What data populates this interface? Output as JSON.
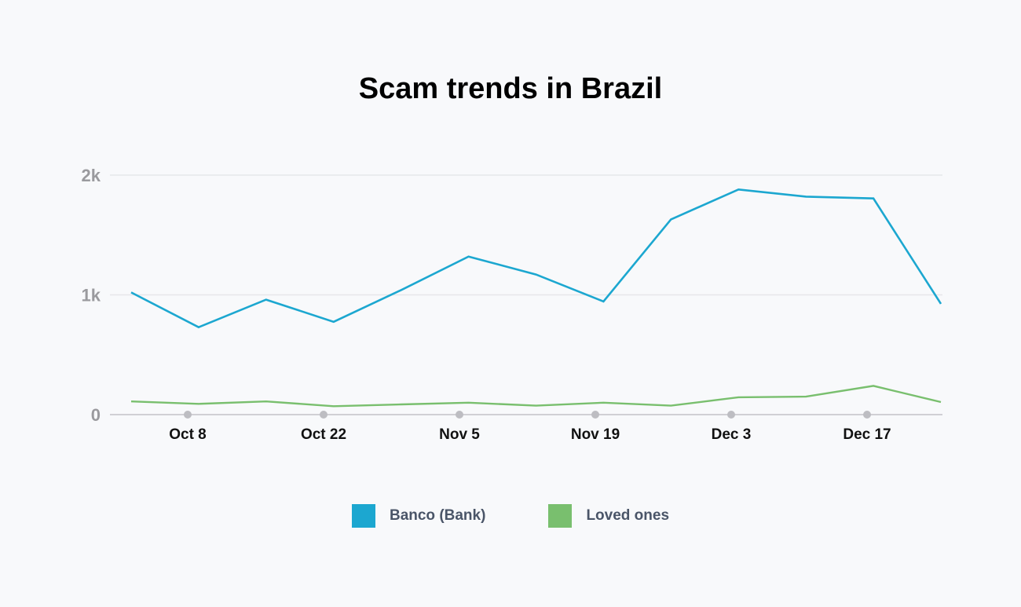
{
  "chart_data": {
    "type": "line",
    "title": "Scam trends in Brazil",
    "xlabel": "",
    "ylabel": "",
    "ylim": [
      0,
      2000
    ],
    "y_ticks": [
      "0",
      "1k",
      "2k"
    ],
    "x_tick_labels": [
      "Oct 8",
      "Oct 22",
      "Nov 5",
      "Nov 19",
      "Dec 3",
      "Dec 17"
    ],
    "grid": true,
    "legend_position": "bottom",
    "x": [
      "Oct 1",
      "Oct 8",
      "Oct 15",
      "Oct 22",
      "Oct 29",
      "Nov 5",
      "Nov 12",
      "Nov 19",
      "Nov 26",
      "Dec 3",
      "Dec 10",
      "Dec 17",
      "Dec 24"
    ],
    "series": [
      {
        "name": "Banco (Bank)",
        "color": "#1ca7d0",
        "values": [
          1020,
          730,
          960,
          775,
          1040,
          1320,
          1170,
          945,
          1630,
          1880,
          1820,
          1805,
          925
        ]
      },
      {
        "name": "Loved ones",
        "color": "#79bf6e",
        "values": [
          110,
          90,
          110,
          70,
          85,
          100,
          75,
          100,
          75,
          145,
          150,
          240,
          105
        ]
      }
    ]
  }
}
